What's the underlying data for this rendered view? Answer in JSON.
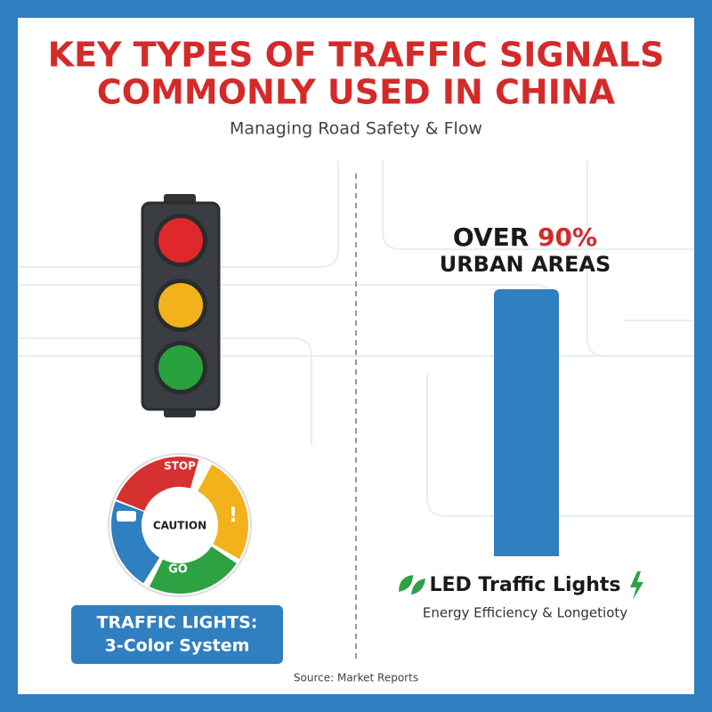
{
  "header": {
    "title_line1": "KEY TYPES OF TRAFFIC SIGNALS",
    "title_line2": "COMMONLY USED IN CHINA",
    "subtitle": "Managing Road Safety & Flow"
  },
  "left": {
    "wheel": {
      "stop": "STOP",
      "caution": "CAUTION",
      "go": "GO"
    },
    "label_line1": "TRAFFIC LIGHTS:",
    "label_line2": "3-Color System"
  },
  "right": {
    "stat_prefix": "OVER",
    "stat_value": "90%",
    "stat_caption": "URBAN AREAS",
    "led_title": "LED Traffic Lights",
    "led_subtitle": "Energy Efficiency & Longetioty"
  },
  "footer": {
    "source": "Source: Market Reports"
  }
}
